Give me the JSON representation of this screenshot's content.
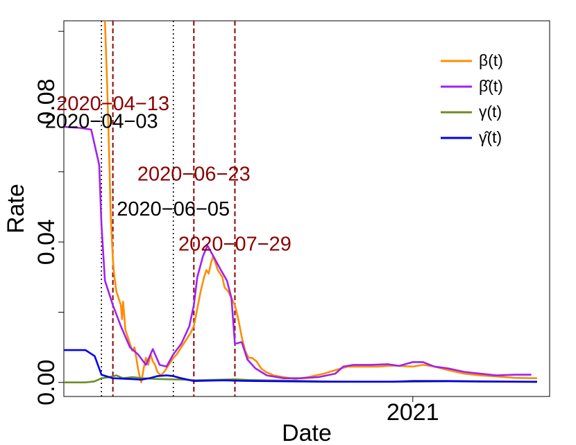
{
  "chart_data": {
    "type": "line",
    "title": "",
    "xlabel": "Date",
    "ylabel": "Rate",
    "xlim": [
      "2020-03-01",
      "2021-05-01"
    ],
    "ylim": [
      -0.004,
      0.103
    ],
    "x_ticks": [
      {
        "date": "2021-01-01",
        "label": "2021"
      }
    ],
    "y_ticks": [
      {
        "value": 0.0,
        "label": "0.00"
      },
      {
        "value": 0.04,
        "label": "0.04"
      },
      {
        "value": 0.08,
        "label": "0.08"
      }
    ],
    "y_minor_ticks": [
      0.02,
      0.06,
      0.1
    ],
    "grid": false,
    "legend_position": "top-right",
    "series": [
      {
        "name": "β(t)",
        "key": "beta",
        "color": "#FF8C00",
        "points": [
          [
            "2020-04-06",
            0.103
          ],
          [
            "2020-04-08",
            0.085
          ],
          [
            "2020-04-10",
            0.062
          ],
          [
            "2020-04-11",
            0.048
          ],
          [
            "2020-04-13",
            0.035
          ],
          [
            "2020-04-14",
            0.031
          ],
          [
            "2020-04-16",
            0.026
          ],
          [
            "2020-04-18",
            0.024
          ],
          [
            "2020-04-20",
            0.022
          ],
          [
            "2020-04-21",
            0.018
          ],
          [
            "2020-04-22",
            0.023
          ],
          [
            "2020-04-24",
            0.015
          ],
          [
            "2020-04-26",
            0.013
          ],
          [
            "2020-04-28",
            0.011
          ],
          [
            "2020-04-30",
            0.009
          ],
          [
            "2020-05-02",
            0.01
          ],
          [
            "2020-05-04",
            0.006
          ],
          [
            "2020-05-05",
            0.004
          ],
          [
            "2020-05-07",
            0.001
          ],
          [
            "2020-05-08",
            0.0
          ],
          [
            "2020-05-10",
            0.004
          ],
          [
            "2020-05-12",
            0.007
          ],
          [
            "2020-05-14",
            0.005
          ],
          [
            "2020-05-16",
            0.008
          ],
          [
            "2020-05-18",
            0.006
          ],
          [
            "2020-05-20",
            0.005
          ],
          [
            "2020-05-22",
            0.003
          ],
          [
            "2020-05-25",
            0.002
          ],
          [
            "2020-05-28",
            0.003
          ],
          [
            "2020-06-01",
            0.005
          ],
          [
            "2020-06-05",
            0.007
          ],
          [
            "2020-06-08",
            0.008
          ],
          [
            "2020-06-12",
            0.01
          ],
          [
            "2020-06-16",
            0.012
          ],
          [
            "2020-06-20",
            0.014
          ],
          [
            "2020-06-23",
            0.016
          ],
          [
            "2020-06-26",
            0.021
          ],
          [
            "2020-06-29",
            0.026
          ],
          [
            "2020-07-02",
            0.03
          ],
          [
            "2020-07-04",
            0.032
          ],
          [
            "2020-07-06",
            0.031
          ],
          [
            "2020-07-08",
            0.034
          ],
          [
            "2020-07-10",
            0.036
          ],
          [
            "2020-07-12",
            0.034
          ],
          [
            "2020-07-14",
            0.032
          ],
          [
            "2020-07-16",
            0.031
          ],
          [
            "2020-07-18",
            0.03
          ],
          [
            "2020-07-20",
            0.027
          ],
          [
            "2020-07-23",
            0.026
          ],
          [
            "2020-07-26",
            0.024
          ],
          [
            "2020-07-29",
            0.022
          ],
          [
            "2020-08-01",
            0.018
          ],
          [
            "2020-08-04",
            0.013
          ],
          [
            "2020-08-07",
            0.009
          ],
          [
            "2020-08-10",
            0.007
          ],
          [
            "2020-08-13",
            0.007
          ],
          [
            "2020-08-17",
            0.006
          ],
          [
            "2020-08-21",
            0.004
          ],
          [
            "2020-08-25",
            0.003
          ],
          [
            "2020-09-01",
            0.002
          ],
          [
            "2020-09-10",
            0.0015
          ],
          [
            "2020-09-20",
            0.001
          ],
          [
            "2020-10-01",
            0.0015
          ],
          [
            "2020-10-15",
            0.0025
          ],
          [
            "2020-10-25",
            0.0035
          ],
          [
            "2020-11-05",
            0.0045
          ],
          [
            "2020-11-20",
            0.0045
          ],
          [
            "2020-12-01",
            0.0045
          ],
          [
            "2020-12-15",
            0.0048
          ],
          [
            "2021-01-01",
            0.0045
          ],
          [
            "2021-01-10",
            0.005
          ],
          [
            "2021-01-20",
            0.0045
          ],
          [
            "2021-02-01",
            0.0035
          ],
          [
            "2021-02-15",
            0.0025
          ],
          [
            "2021-03-01",
            0.002
          ],
          [
            "2021-03-15",
            0.0017
          ],
          [
            "2021-04-01",
            0.0013
          ],
          [
            "2021-04-20",
            0.0012
          ]
        ]
      },
      {
        "name": "β̂(t)",
        "key": "beta_hat",
        "color": "#A020F0",
        "points": [
          [
            "2020-03-01",
            0.0728
          ],
          [
            "2020-03-15",
            0.0725
          ],
          [
            "2020-03-25",
            0.072
          ],
          [
            "2020-04-01",
            0.062
          ],
          [
            "2020-04-03",
            0.045
          ],
          [
            "2020-04-06",
            0.029
          ],
          [
            "2020-04-13",
            0.022
          ],
          [
            "2020-04-20",
            0.016
          ],
          [
            "2020-04-28",
            0.01
          ],
          [
            "2020-05-05",
            0.008
          ],
          [
            "2020-05-12",
            0.005
          ],
          [
            "2020-05-18",
            0.0095
          ],
          [
            "2020-05-24",
            0.005
          ],
          [
            "2020-05-30",
            0.0045
          ],
          [
            "2020-06-05",
            0.008
          ],
          [
            "2020-06-12",
            0.011
          ],
          [
            "2020-06-19",
            0.016
          ],
          [
            "2020-06-23",
            0.022
          ],
          [
            "2020-06-26",
            0.03
          ],
          [
            "2020-07-01",
            0.036
          ],
          [
            "2020-07-05",
            0.039
          ],
          [
            "2020-07-10",
            0.036
          ],
          [
            "2020-07-15",
            0.033
          ],
          [
            "2020-07-22",
            0.029
          ],
          [
            "2020-07-26",
            0.024
          ],
          [
            "2020-07-29",
            0.011
          ],
          [
            "2020-08-04",
            0.0115
          ],
          [
            "2020-08-09",
            0.0065
          ],
          [
            "2020-08-16",
            0.004
          ],
          [
            "2020-08-26",
            0.002
          ],
          [
            "2020-09-10",
            0.0012
          ],
          [
            "2020-09-25",
            0.0012
          ],
          [
            "2020-10-10",
            0.0015
          ],
          [
            "2020-10-25",
            0.0025
          ],
          [
            "2020-11-01",
            0.0045
          ],
          [
            "2020-11-10",
            0.005
          ],
          [
            "2020-11-25",
            0.005
          ],
          [
            "2020-12-10",
            0.0052
          ],
          [
            "2020-12-20",
            0.0047
          ],
          [
            "2021-01-01",
            0.0058
          ],
          [
            "2021-01-10",
            0.0058
          ],
          [
            "2021-01-20",
            0.0045
          ],
          [
            "2021-02-01",
            0.004
          ],
          [
            "2021-02-15",
            0.003
          ],
          [
            "2021-03-01",
            0.0025
          ],
          [
            "2021-03-15",
            0.002
          ],
          [
            "2021-04-01",
            0.0022
          ],
          [
            "2021-04-15",
            0.0022
          ]
        ]
      },
      {
        "name": "γ(t)",
        "key": "gamma",
        "color": "#6B8E23",
        "points": [
          [
            "2020-03-01",
            0.0
          ],
          [
            "2020-03-20",
            0.0
          ],
          [
            "2020-03-28",
            0.0003
          ],
          [
            "2020-04-03",
            0.0012
          ],
          [
            "2020-04-10",
            0.0015
          ],
          [
            "2020-04-16",
            0.002
          ],
          [
            "2020-04-22",
            0.0012
          ],
          [
            "2020-04-30",
            0.0015
          ],
          [
            "2020-05-10",
            0.0012
          ],
          [
            "2020-05-20",
            0.001
          ],
          [
            "2020-06-01",
            0.0009
          ],
          [
            "2020-06-15",
            0.0008
          ],
          [
            "2020-06-23",
            0.0006
          ],
          [
            "2020-07-05",
            0.0007
          ],
          [
            "2020-07-20",
            0.0008
          ],
          [
            "2020-07-29",
            0.0009
          ],
          [
            "2020-08-10",
            0.0007
          ],
          [
            "2020-08-25",
            0.0006
          ],
          [
            "2020-09-15",
            0.0005
          ],
          [
            "2020-10-15",
            0.0003
          ],
          [
            "2020-11-15",
            0.0002
          ],
          [
            "2020-12-15",
            0.0002
          ],
          [
            "2021-01-01",
            0.0002
          ],
          [
            "2021-02-01",
            0.0003
          ],
          [
            "2021-03-01",
            0.0002
          ],
          [
            "2021-04-20",
            0.0001
          ]
        ]
      },
      {
        "name": "γ̂(t)",
        "key": "gamma_hat",
        "color": "#0000EE",
        "points": [
          [
            "2020-03-01",
            0.0092
          ],
          [
            "2020-03-20",
            0.0092
          ],
          [
            "2020-03-28",
            0.0075
          ],
          [
            "2020-04-03",
            0.0022
          ],
          [
            "2020-04-13",
            0.0012
          ],
          [
            "2020-04-27",
            0.001
          ],
          [
            "2020-05-08",
            0.0008
          ],
          [
            "2020-05-15",
            0.0012
          ],
          [
            "2020-05-22",
            0.0018
          ],
          [
            "2020-05-30",
            0.002
          ],
          [
            "2020-06-05",
            0.0018
          ],
          [
            "2020-06-12",
            0.0012
          ],
          [
            "2020-06-23",
            0.0004
          ],
          [
            "2020-07-05",
            0.0005
          ],
          [
            "2020-07-20",
            0.0006
          ],
          [
            "2020-07-29",
            0.0005
          ],
          [
            "2020-08-15",
            0.0004
          ],
          [
            "2020-09-15",
            0.0003
          ],
          [
            "2020-10-15",
            0.0002
          ],
          [
            "2020-11-15",
            0.0002
          ],
          [
            "2020-12-15",
            0.0002
          ],
          [
            "2021-01-01",
            0.0004
          ],
          [
            "2021-02-01",
            0.0004
          ],
          [
            "2021-03-01",
            0.0003
          ],
          [
            "2021-04-20",
            0.0002
          ]
        ]
      }
    ],
    "vertical_lines": [
      {
        "date": "2020-04-03",
        "style": "dotted",
        "color": "#000000"
      },
      {
        "date": "2020-04-13",
        "style": "dashed",
        "color": "#8B0000"
      },
      {
        "date": "2020-06-05",
        "style": "dotted",
        "color": "#000000"
      },
      {
        "date": "2020-06-23",
        "style": "dashed",
        "color": "#8B0000"
      },
      {
        "date": "2020-07-29",
        "style": "dashed",
        "color": "#8B0000"
      }
    ],
    "annotations": [
      {
        "text": "2020−04−13",
        "date": "2020-04-13",
        "y": 0.0795,
        "color": "#8B0000"
      },
      {
        "text": "2020−04−03",
        "date": "2020-04-03",
        "y": 0.0745,
        "color": "#000000"
      },
      {
        "text": "2020−06−23",
        "date": "2020-06-23",
        "y": 0.0595,
        "color": "#8B0000"
      },
      {
        "text": "2020−06−05",
        "date": "2020-06-05",
        "y": 0.0495,
        "color": "#000000"
      },
      {
        "text": "2020−07−29",
        "date": "2020-07-29",
        "y": 0.0395,
        "color": "#8B0000"
      }
    ]
  }
}
